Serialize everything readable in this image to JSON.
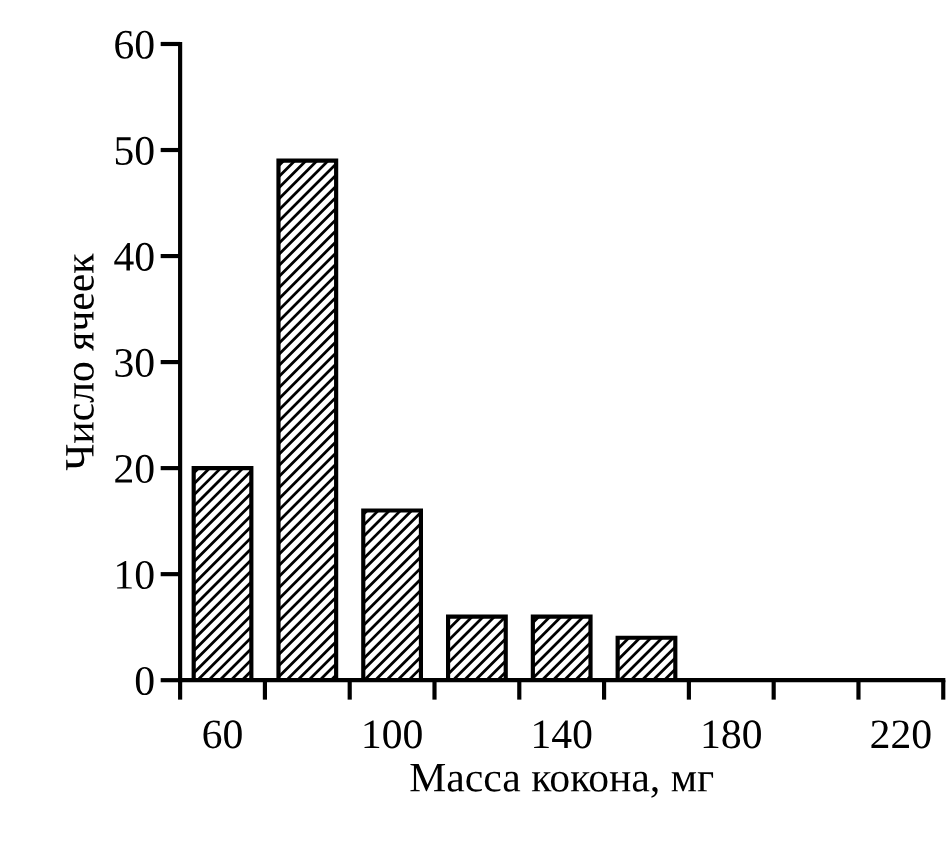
{
  "chart_data": {
    "type": "bar",
    "xlabel": "Масса кокона, мг",
    "ylabel": "Число ячеек",
    "categories": [
      "60",
      null,
      "100",
      null,
      "140",
      null,
      "180",
      null,
      "220"
    ],
    "values": [
      20,
      49,
      16,
      6,
      6,
      4,
      0,
      0,
      0
    ],
    "color": "#000000",
    "ylim": [
      0,
      60
    ],
    "yticks": [
      0,
      10,
      20,
      30,
      40,
      50,
      60
    ],
    "grid": false,
    "legend": false
  }
}
